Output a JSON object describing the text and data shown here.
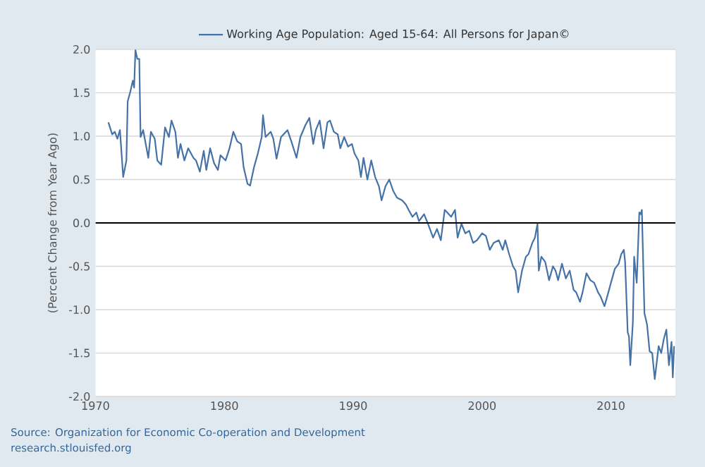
{
  "chart_data": {
    "type": "line",
    "ylabel": "(Percent Change from Year Ago)",
    "xlim": [
      1970,
      2015
    ],
    "xticks": [
      1970,
      1980,
      1990,
      2000,
      2010
    ],
    "ylim": [
      -2.0,
      2.0
    ],
    "yticks": [
      {
        "value": -2.0,
        "label": "-2.0"
      },
      {
        "value": -1.5,
        "label": "-1.5"
      },
      {
        "value": -1.0,
        "label": "-1.0"
      },
      {
        "value": -0.5,
        "label": "-0.5"
      },
      {
        "value": 0.0,
        "label": "0.0"
      },
      {
        "value": 0.5,
        "label": "0.5"
      },
      {
        "value": 1.0,
        "label": "1.0"
      },
      {
        "value": 1.5,
        "label": "1.5"
      },
      {
        "value": 2.0,
        "label": "2.0"
      }
    ],
    "grid": "y",
    "legend": "top",
    "ref_lines": [
      {
        "axis": "y",
        "value": 0,
        "color": "#000000"
      }
    ],
    "annotations": [
      "Source: Organization for Economic Co-operation and Development",
      "research.stlouisfed.org"
    ],
    "series": [
      {
        "name": "Working Age Population: Aged 15-64: All Persons for Japan©",
        "color": "#4572a7",
        "x": [
          1971.0,
          1971.3,
          1971.5,
          1971.7,
          1971.9,
          1972.15,
          1972.4,
          1972.5,
          1972.7,
          1972.9,
          1973.0,
          1973.1,
          1973.25,
          1973.4,
          1973.5,
          1973.7,
          1973.9,
          1974.1,
          1974.3,
          1974.6,
          1974.8,
          1975.1,
          1975.4,
          1975.7,
          1975.9,
          1976.2,
          1976.4,
          1976.6,
          1976.9,
          1977.2,
          1977.6,
          1977.8,
          1978.1,
          1978.4,
          1978.6,
          1978.9,
          1979.2,
          1979.5,
          1979.7,
          1980.1,
          1980.4,
          1980.7,
          1981.0,
          1981.3,
          1981.5,
          1981.8,
          1982.0,
          1982.3,
          1982.6,
          1982.9,
          1983.0,
          1983.2,
          1983.6,
          1983.8,
          1984.05,
          1984.4,
          1984.9,
          1985.2,
          1985.6,
          1985.9,
          1986.3,
          1986.6,
          1986.9,
          1987.1,
          1987.4,
          1987.7,
          1988.0,
          1988.2,
          1988.5,
          1988.8,
          1989.0,
          1989.3,
          1989.6,
          1989.9,
          1990.1,
          1990.4,
          1990.6,
          1990.8,
          1991.1,
          1991.4,
          1991.7,
          1992.0,
          1992.2,
          1992.5,
          1992.8,
          1993.1,
          1993.4,
          1993.8,
          1994.1,
          1994.3,
          1994.6,
          1994.9,
          1995.1,
          1995.5,
          1995.8,
          1996.2,
          1996.5,
          1996.8,
          1997.1,
          1997.3,
          1997.6,
          1997.9,
          1998.1,
          1998.4,
          1998.7,
          1999.0,
          1999.3,
          1999.6,
          2000.0,
          2000.3,
          2000.6,
          2000.9,
          2001.3,
          2001.6,
          2001.8,
          2002.1,
          2002.4,
          2002.6,
          2002.8,
          2003.1,
          2003.4,
          2003.6,
          2003.9,
          2004.1,
          2004.3,
          2004.4,
          2004.6,
          2004.9,
          2005.2,
          2005.5,
          2005.7,
          2005.9,
          2006.2,
          2006.5,
          2006.8,
          2007.1,
          2007.3,
          2007.6,
          2007.8,
          2008.1,
          2008.4,
          2008.7,
          2009.0,
          2009.2,
          2009.5,
          2009.8,
          2010.0,
          2010.3,
          2010.6,
          2010.8,
          2011.0,
          2011.1,
          2011.3,
          2011.4,
          2011.5,
          2011.7,
          2011.8,
          2012.0,
          2012.2,
          2012.3,
          2012.4,
          2012.6,
          2012.8,
          2013.0,
          2013.2,
          2013.4,
          2013.7,
          2013.9,
          2014.1,
          2014.3,
          2014.5,
          2014.7,
          2014.8,
          2014.9
        ],
        "values": [
          1.16,
          1.02,
          1.05,
          0.97,
          1.07,
          0.53,
          0.72,
          1.4,
          1.51,
          1.64,
          1.56,
          1.99,
          1.89,
          1.89,
          0.99,
          1.07,
          0.91,
          0.75,
          1.05,
          0.97,
          0.72,
          0.67,
          1.1,
          0.99,
          1.18,
          1.05,
          0.75,
          0.91,
          0.72,
          0.86,
          0.75,
          0.72,
          0.59,
          0.83,
          0.61,
          0.86,
          0.69,
          0.61,
          0.78,
          0.72,
          0.86,
          1.05,
          0.94,
          0.91,
          0.64,
          0.45,
          0.43,
          0.64,
          0.8,
          0.99,
          1.24,
          0.99,
          1.05,
          0.97,
          0.74,
          0.99,
          1.07,
          0.94,
          0.75,
          0.99,
          1.13,
          1.21,
          0.91,
          1.07,
          1.18,
          0.86,
          1.16,
          1.18,
          1.05,
          1.02,
          0.86,
          0.99,
          0.88,
          0.91,
          0.8,
          0.72,
          0.53,
          0.75,
          0.5,
          0.72,
          0.53,
          0.42,
          0.26,
          0.42,
          0.5,
          0.37,
          0.29,
          0.26,
          0.21,
          0.15,
          0.07,
          0.12,
          0.02,
          0.1,
          -0.01,
          -0.17,
          -0.07,
          -0.2,
          0.15,
          0.12,
          0.07,
          0.15,
          -0.17,
          -0.01,
          -0.12,
          -0.09,
          -0.23,
          -0.2,
          -0.12,
          -0.15,
          -0.31,
          -0.23,
          -0.2,
          -0.31,
          -0.2,
          -0.36,
          -0.5,
          -0.55,
          -0.8,
          -0.55,
          -0.39,
          -0.36,
          -0.23,
          -0.17,
          -0.01,
          -0.55,
          -0.39,
          -0.45,
          -0.66,
          -0.5,
          -0.55,
          -0.66,
          -0.47,
          -0.64,
          -0.55,
          -0.77,
          -0.8,
          -0.91,
          -0.8,
          -0.58,
          -0.66,
          -0.69,
          -0.8,
          -0.85,
          -0.96,
          -0.8,
          -0.69,
          -0.53,
          -0.47,
          -0.36,
          -0.31,
          -0.45,
          -1.26,
          -1.31,
          -1.64,
          -1.15,
          -0.39,
          -0.69,
          0.12,
          0.1,
          0.15,
          -1.04,
          -1.17,
          -1.48,
          -1.5,
          -1.8,
          -1.42,
          -1.5,
          -1.34,
          -1.23,
          -1.64,
          -1.37,
          -1.78,
          -1.42
        ]
      }
    ]
  }
}
